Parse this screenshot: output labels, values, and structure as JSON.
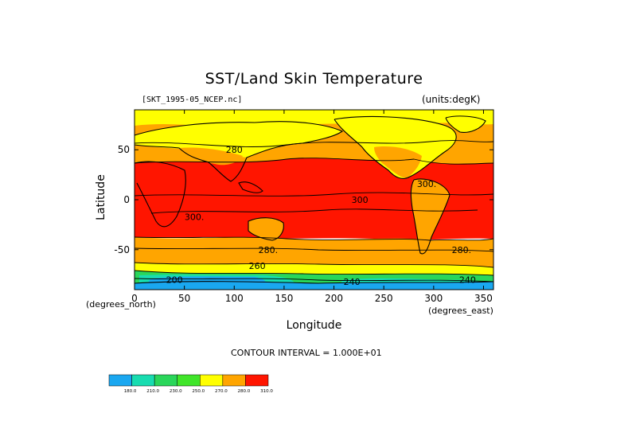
{
  "chart_data": {
    "type": "heatmap",
    "title": "SST/Land Skin Temperature",
    "dataset_label": "[SKT_1995-05_NCEP.nc]",
    "units_label": "(units:degK)",
    "xlabel": "Longitude",
    "ylabel": "Latitude",
    "x_unit_label": "(degrees_north)",
    "x_unit_label_right": "(degrees_east)",
    "xlim": [
      0,
      360
    ],
    "ylim": [
      -90,
      90
    ],
    "x_ticks": [
      "0",
      "50",
      "100",
      "150",
      "200",
      "250",
      "300",
      "350"
    ],
    "x_tick_values": [
      0,
      50,
      100,
      150,
      200,
      250,
      300,
      350
    ],
    "y_ticks": [
      "50",
      "0",
      "-50"
    ],
    "y_tick_values": [
      50,
      0,
      -50
    ],
    "contour_interval_text": "CONTOUR INTERVAL = 1.000E+01",
    "contour_labels": [
      {
        "text": "280",
        "lon": 100,
        "lat": 50
      },
      {
        "text": "300.",
        "lon": 60,
        "lat": -17
      },
      {
        "text": "300",
        "lon": 226,
        "lat": 0
      },
      {
        "text": "300.",
        "lon": 293,
        "lat": 16
      },
      {
        "text": "280.",
        "lon": 134,
        "lat": -50
      },
      {
        "text": "280.",
        "lon": 328,
        "lat": -50
      },
      {
        "text": "260",
        "lon": 123,
        "lat": -66
      },
      {
        "text": "200",
        "lon": 40,
        "lat": -80
      },
      {
        "text": "240",
        "lon": 218,
        "lat": -82
      },
      {
        "text": "240",
        "lon": 334,
        "lat": -80
      }
    ],
    "colorbar": {
      "labels": [
        "180.0",
        "210.0",
        "230.0",
        "250.0",
        "270.0",
        "280.0",
        "310.0"
      ],
      "colors": [
        "#1aa7f0",
        "#18dcb0",
        "#2ad65a",
        "#40e52a",
        "#ffff00",
        "#ffa500",
        "#ff1500"
      ]
    },
    "band_colors": {
      "cold": "#1aa7f0",
      "cool": "#18dcb0",
      "green": "#2ad65a",
      "lime": "#40e52a",
      "yellow": "#ffff00",
      "orange": "#ffa500",
      "red": "#ff1500"
    }
  }
}
